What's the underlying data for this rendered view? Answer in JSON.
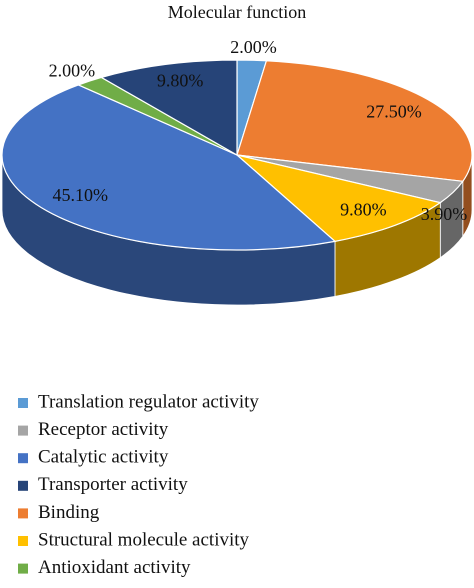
{
  "chart_data": {
    "type": "pie",
    "title": "Molecular function",
    "categories": [
      "Translation regulator activity",
      "Binding",
      "Receptor activity",
      "Structural molecule activity",
      "Catalytic activity",
      "Antioxidant activity",
      "Transporter activity"
    ],
    "values": [
      2.0,
      27.5,
      3.9,
      9.8,
      45.1,
      2.0,
      9.8
    ],
    "value_labels": [
      "2.00%",
      "27.50%",
      "3.90%",
      "9.80%",
      "45.10%",
      "2.00%",
      "9.80%"
    ],
    "colors": [
      "#5b9bd5",
      "#ed7d31",
      "#a5a5a5",
      "#ffc000",
      "#4472c4",
      "#70ad47",
      "#264478"
    ]
  }
}
